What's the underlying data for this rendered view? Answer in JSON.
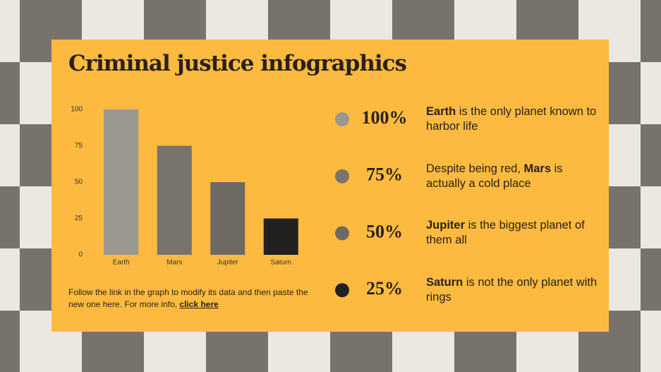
{
  "title": "Criminal justice infographics",
  "chart_data": {
    "type": "bar",
    "categories": [
      "Earth",
      "Mars",
      "Jupiter",
      "Saturn"
    ],
    "values": [
      100,
      75,
      50,
      25
    ],
    "colors": [
      "#9b9791",
      "#78736d",
      "#6f6964",
      "#222120"
    ],
    "ylim": [
      0,
      100
    ],
    "yticks": [
      0,
      25,
      50,
      75,
      100
    ],
    "grid": false
  },
  "items": [
    {
      "percent": "100%",
      "name": "Earth",
      "text": " is the only planet known to harbor life"
    },
    {
      "percent": "75%",
      "name": "Mars",
      "prefix": "Despite being red, ",
      "text": " is actually a cold place"
    },
    {
      "percent": "50%",
      "name": "Jupiter",
      "text": " is the biggest planet of them all"
    },
    {
      "percent": "25%",
      "name": "Saturn",
      "text": " is not the only planet with rings"
    }
  ],
  "footnote": {
    "text": "Follow the link in the graph to modify its data and then paste the new one here. For more info, ",
    "link": "click here"
  }
}
